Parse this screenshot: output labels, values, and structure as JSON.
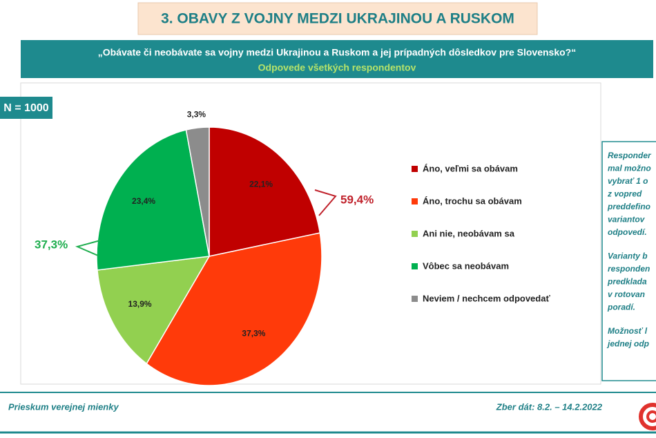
{
  "header": {
    "title": "3. OBAVY Z VOJNY MEDZI UKRAJINOU A RUSKOM",
    "question": "„Obávate či neobávate sa vojny medzi Ukrajinou a Ruskom a jej prípadných dôsledkov pre Slovensko?“",
    "base": "N = 1000"
  },
  "chart_data": {
    "type": "pie",
    "subtitle": "Odpovede všetkých respondentov",
    "categories": [
      "Áno, veľmi sa obávam",
      "Áno, trochu sa obávam",
      "Ani nie, neobávam sa",
      "Vôbec sa neobávam",
      "Neviem / nechcem odpovedať"
    ],
    "values": [
      22.1,
      37.3,
      13.9,
      23.4,
      3.3
    ],
    "value_labels": [
      "22,1%",
      "37,3%",
      "13,9%",
      "23,4%",
      "3,3%"
    ],
    "colors": [
      "#c00000",
      "#ff3a0a",
      "#92d050",
      "#00b050",
      "#8c8c8c"
    ],
    "annotations": [
      {
        "text": "59,4%",
        "color": "#c0212b"
      },
      {
        "text": "37,3%",
        "color": "#1fae4f"
      }
    ]
  },
  "note": {
    "lines": [
      "Responder",
      "mal možno",
      "vybrať 1 o",
      "z vopred",
      "preddefino",
      "variantov",
      "odpovedí.",
      "Varianty b",
      "responden",
      "predklada",
      "v rotovan",
      "poradí.",
      "Možnosť l",
      "jednej odp"
    ]
  },
  "footer": {
    "left": "Prieskum verejnej mienky",
    "right": "Zber dát: 8.2. – 14.2.2022"
  }
}
